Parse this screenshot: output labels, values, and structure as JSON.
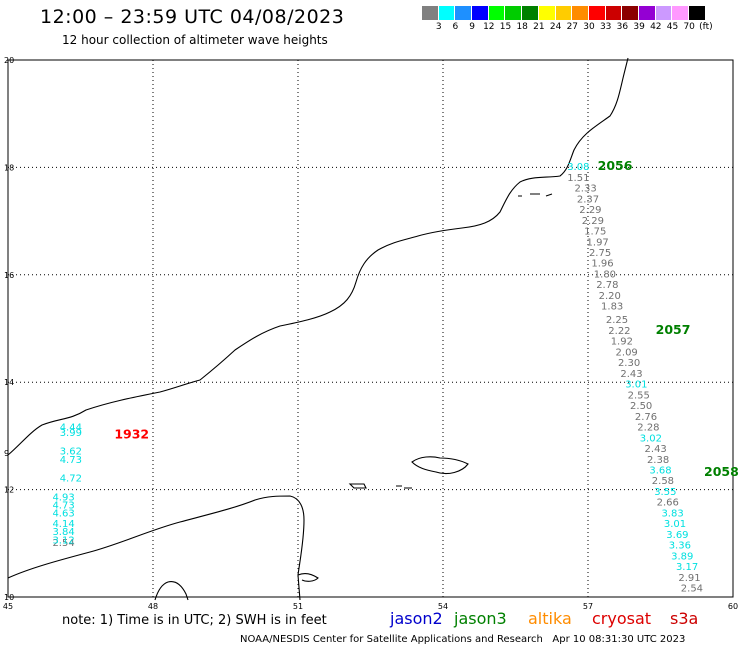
{
  "header": {
    "title": "12:00 – 23:59 UTC 04/08/2023",
    "subtitle": "12 hour collection of altimeter wave heights"
  },
  "legend": {
    "colors": [
      "#808080",
      "#00ffff",
      "#1e90ff",
      "#0000ff",
      "#00ff00",
      "#00cc00",
      "#008000",
      "#ffff00",
      "#ffcc00",
      "#ff8c00",
      "#ff0000",
      "#cc0000",
      "#8b0000",
      "#9400d3",
      "#cc99ff",
      "#ff99ff",
      "#000000"
    ],
    "labels": [
      "3",
      "6",
      "9",
      "12",
      "15",
      "18",
      "21",
      "24",
      "27",
      "30",
      "33",
      "36",
      "39",
      "42",
      "45",
      "70",
      "(ft)"
    ]
  },
  "map": {
    "x_ticks": [
      "45",
      "48",
      "51",
      "54",
      "57",
      "60"
    ],
    "y_ticks": [
      "20",
      "18",
      "16",
      "14",
      "12",
      "10"
    ],
    "y_tick_extra": "9",
    "colors": {
      "jason3": "#008000",
      "cryosat": "#ff0000",
      "cyan": "#00e0e0",
      "gray": "#707070"
    },
    "pass_labels": [
      {
        "text": "1932",
        "lon": 47.2,
        "lat": 12.95,
        "color": "#ff0000"
      },
      {
        "text": "2056",
        "lon": 57.2,
        "lat": 17.95,
        "color": "#008000"
      },
      {
        "text": "2057",
        "lon": 58.4,
        "lat": 14.9,
        "color": "#008000"
      },
      {
        "text": "2058",
        "lon": 59.4,
        "lat": 12.25,
        "color": "#008000"
      }
    ],
    "track_values": [
      {
        "text": "3.08",
        "lon": 56.8,
        "lat": 17.95,
        "color": "cyan"
      },
      {
        "text": "1.51",
        "lon": 56.8,
        "lat": 17.75,
        "color": "gray"
      },
      {
        "text": "2.33",
        "lon": 56.95,
        "lat": 17.55,
        "color": "gray"
      },
      {
        "text": "2.37",
        "lon": 57.0,
        "lat": 17.35,
        "color": "gray"
      },
      {
        "text": "2.29",
        "lon": 57.05,
        "lat": 17.15,
        "color": "gray"
      },
      {
        "text": "2.29",
        "lon": 57.1,
        "lat": 16.95,
        "color": "gray"
      },
      {
        "text": "1.75",
        "lon": 57.15,
        "lat": 16.75,
        "color": "gray"
      },
      {
        "text": "1.97",
        "lon": 57.2,
        "lat": 16.55,
        "color": "gray"
      },
      {
        "text": "2.75",
        "lon": 57.25,
        "lat": 16.35,
        "color": "gray"
      },
      {
        "text": "1.96",
        "lon": 57.3,
        "lat": 16.15,
        "color": "gray"
      },
      {
        "text": "1.80",
        "lon": 57.35,
        "lat": 15.95,
        "color": "gray"
      },
      {
        "text": "2.78",
        "lon": 57.4,
        "lat": 15.75,
        "color": "gray"
      },
      {
        "text": "2.20",
        "lon": 57.45,
        "lat": 15.55,
        "color": "gray"
      },
      {
        "text": "1.83",
        "lon": 57.5,
        "lat": 15.35,
        "color": "gray"
      },
      {
        "text": "2.25",
        "lon": 57.6,
        "lat": 15.1,
        "color": "gray"
      },
      {
        "text": "2.22",
        "lon": 57.65,
        "lat": 14.9,
        "color": "gray"
      },
      {
        "text": "1.92",
        "lon": 57.7,
        "lat": 14.7,
        "color": "gray"
      },
      {
        "text": "2.09",
        "lon": 57.8,
        "lat": 14.5,
        "color": "gray"
      },
      {
        "text": "2.30",
        "lon": 57.85,
        "lat": 14.3,
        "color": "gray"
      },
      {
        "text": "2.43",
        "lon": 57.9,
        "lat": 14.1,
        "color": "gray"
      },
      {
        "text": "3.01",
        "lon": 58.0,
        "lat": 13.9,
        "color": "cyan"
      },
      {
        "text": "2.55",
        "lon": 58.05,
        "lat": 13.7,
        "color": "gray"
      },
      {
        "text": "2.50",
        "lon": 58.1,
        "lat": 13.5,
        "color": "gray"
      },
      {
        "text": "2.76",
        "lon": 58.2,
        "lat": 13.3,
        "color": "gray"
      },
      {
        "text": "2.28",
        "lon": 58.25,
        "lat": 13.1,
        "color": "gray"
      },
      {
        "text": "3.02",
        "lon": 58.3,
        "lat": 12.9,
        "color": "cyan"
      },
      {
        "text": "2.43",
        "lon": 58.4,
        "lat": 12.7,
        "color": "gray"
      },
      {
        "text": "2.38",
        "lon": 58.45,
        "lat": 12.5,
        "color": "gray"
      },
      {
        "text": "3.68",
        "lon": 58.5,
        "lat": 12.3,
        "color": "cyan"
      },
      {
        "text": "2.58",
        "lon": 58.55,
        "lat": 12.1,
        "color": "gray"
      },
      {
        "text": "3.55",
        "lon": 58.6,
        "lat": 11.9,
        "color": "cyan"
      },
      {
        "text": "2.66",
        "lon": 58.65,
        "lat": 11.7,
        "color": "gray"
      },
      {
        "text": "3.83",
        "lon": 58.75,
        "lat": 11.5,
        "color": "cyan"
      },
      {
        "text": "3.01",
        "lon": 58.8,
        "lat": 11.3,
        "color": "cyan"
      },
      {
        "text": "3.69",
        "lon": 58.85,
        "lat": 11.1,
        "color": "cyan"
      },
      {
        "text": "3.36",
        "lon": 58.9,
        "lat": 10.9,
        "color": "cyan"
      },
      {
        "text": "3.89",
        "lon": 58.95,
        "lat": 10.7,
        "color": "cyan"
      },
      {
        "text": "3.17",
        "lon": 59.05,
        "lat": 10.5,
        "color": "cyan"
      },
      {
        "text": "2.91",
        "lon": 59.1,
        "lat": 10.3,
        "color": "gray"
      },
      {
        "text": "2.54",
        "lon": 59.15,
        "lat": 10.1,
        "color": "gray"
      },
      {
        "text": "4.44",
        "lon": 46.3,
        "lat": 13.1,
        "color": "cyan"
      },
      {
        "text": "3.99",
        "lon": 46.3,
        "lat": 13.0,
        "color": "cyan"
      },
      {
        "text": "3.62",
        "lon": 46.3,
        "lat": 12.65,
        "color": "cyan"
      },
      {
        "text": "4.73",
        "lon": 46.3,
        "lat": 12.5,
        "color": "cyan"
      },
      {
        "text": "4.72",
        "lon": 46.3,
        "lat": 12.15,
        "color": "cyan"
      },
      {
        "text": "4.93",
        "lon": 46.15,
        "lat": 11.8,
        "color": "cyan"
      },
      {
        "text": "4.73",
        "lon": 46.15,
        "lat": 11.65,
        "color": "cyan"
      },
      {
        "text": "4.63",
        "lon": 46.15,
        "lat": 11.5,
        "color": "cyan"
      },
      {
        "text": "4.14",
        "lon": 46.15,
        "lat": 11.3,
        "color": "cyan"
      },
      {
        "text": "3.84",
        "lon": 46.15,
        "lat": 11.15,
        "color": "cyan"
      },
      {
        "text": "2.54",
        "lon": 46.15,
        "lat": 10.95,
        "color": "gray"
      },
      {
        "text": "3.12",
        "lon": 46.15,
        "lat": 11.0,
        "color": "cyan"
      }
    ]
  },
  "footer": {
    "note": "note:  1) Time is in UTC;  2) SWH is in feet",
    "satellites": [
      {
        "name": "jason2",
        "color": "#0000cc"
      },
      {
        "name": "jason3",
        "color": "#008000"
      },
      {
        "name": "altika",
        "color": "#ff8c00"
      },
      {
        "name": "cryosat",
        "color": "#dd0000"
      },
      {
        "name": "s3a",
        "color": "#cc0000"
      }
    ],
    "credit": "NOAA/NESDIS Center for Satellite Applications and Research",
    "timestamp": "Apr 10 08:31:30 UTC 2023"
  }
}
